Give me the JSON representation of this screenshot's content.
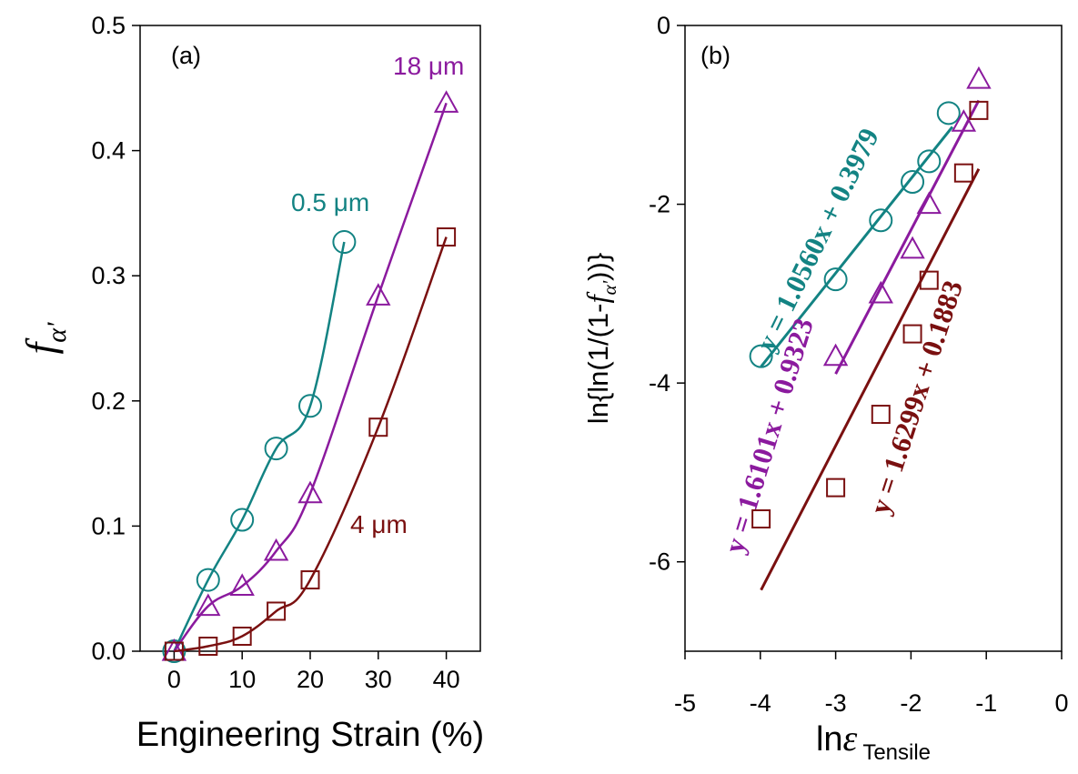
{
  "chart_data": [
    {
      "type": "line",
      "panel_label": "(a)",
      "xlabel": "Engineering Strain (%)",
      "ylabel_main": "f",
      "ylabel_sub": "α'",
      "xlim": [
        -5,
        45
      ],
      "ylim": [
        0,
        0.5
      ],
      "xticks": [
        0,
        10,
        20,
        30,
        40
      ],
      "yticks": [
        0.0,
        0.1,
        0.2,
        0.3,
        0.4,
        0.5
      ],
      "ytick_labels": [
        "0.0",
        "0.1",
        "0.2",
        "0.3",
        "0.4",
        "0.5"
      ],
      "series": [
        {
          "name": "0.5 μm",
          "color": "#138383",
          "marker": "circle",
          "x": [
            0,
            5,
            10,
            15,
            20,
            25
          ],
          "y": [
            0,
            0.057,
            0.105,
            0.162,
            0.196,
            0.327
          ]
        },
        {
          "name": "18 μm",
          "color": "#8b1a9e",
          "marker": "triangle",
          "x": [
            0,
            5,
            10,
            15,
            20,
            30,
            40
          ],
          "y": [
            0,
            0.036,
            0.052,
            0.08,
            0.126,
            0.284,
            0.438
          ]
        },
        {
          "name": "4 μm",
          "color": "#7a1010",
          "marker": "square",
          "x": [
            0,
            5,
            10,
            15,
            20,
            30,
            40
          ],
          "y": [
            0,
            0.004,
            0.012,
            0.032,
            0.057,
            0.179,
            0.331
          ]
        }
      ]
    },
    {
      "type": "scatter",
      "panel_label": "(b)",
      "xlabel_prefix": "ln",
      "xlabel_symbol": "ε",
      "xlabel_sub": "Tensile",
      "ylabel_prefix": "ln{ln(1/(1-",
      "ylabel_symbol": "f",
      "ylabel_sub": "α'",
      "ylabel_suffix": "))}",
      "xlim": [
        -5,
        0
      ],
      "ylim": [
        -7,
        0
      ],
      "xticks": [
        -5,
        -4,
        -3,
        -2,
        -1,
        0
      ],
      "yticks": [
        0,
        -2,
        -4,
        -6
      ],
      "series": [
        {
          "color": "#138383",
          "marker": "circle",
          "x": [
            -3.99,
            -3.0,
            -2.4,
            -1.98,
            -1.76,
            -1.5
          ],
          "y": [
            -3.7,
            -2.84,
            -2.18,
            -1.75,
            -1.52,
            -0.98
          ],
          "fit": {
            "slope": 1.056,
            "intercept": 0.3979,
            "x_range": [
              -3.99,
              -1.45
            ]
          },
          "equation": "y = 1.0560x + 0.3979"
        },
        {
          "color": "#8b1a9e",
          "marker": "triangle",
          "x": [
            -3.0,
            -2.4,
            -1.98,
            -1.76,
            -1.3,
            -1.1
          ],
          "y": [
            -3.7,
            -3.0,
            -2.5,
            -2.0,
            -1.08,
            -0.6
          ],
          "fit": {
            "slope": 1.6101,
            "intercept": 0.9323,
            "x_range": [
              -3.0,
              -1.1
            ]
          },
          "equation": "y = 1.6101x + 0.9323"
        },
        {
          "color": "#7a1010",
          "marker": "square",
          "x": [
            -3.99,
            -3.0,
            -2.4,
            -1.98,
            -1.76,
            -1.3,
            -1.1
          ],
          "y": [
            -5.52,
            -5.17,
            -4.35,
            -3.45,
            -2.85,
            -1.65,
            -0.95
          ],
          "fit": {
            "slope": 1.6299,
            "intercept": 0.1883,
            "x_range": [
              -3.99,
              -1.1
            ]
          },
          "equation": "y = 1.6299x + 0.1883"
        }
      ]
    }
  ]
}
